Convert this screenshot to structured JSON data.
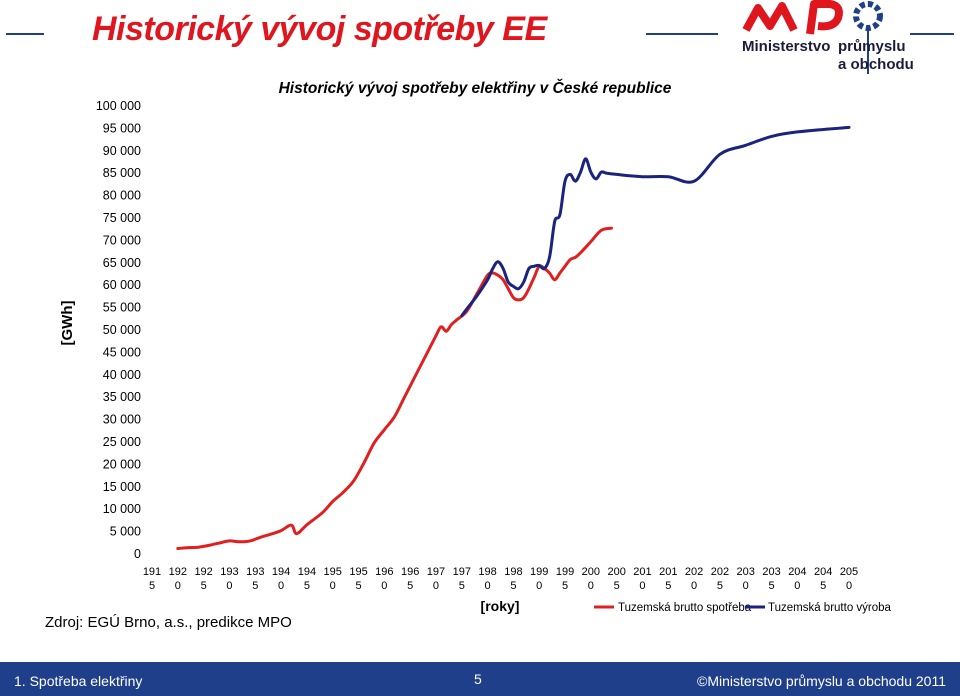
{
  "slide": {
    "title": "Historický vývoj spotřeby EE",
    "source": "Zdroj: EGÚ Brno, a.s., predikce MPO"
  },
  "logo": {
    "word1": "Ministerstvo",
    "word2": "průmyslu",
    "word3": "a obchodu"
  },
  "footer": {
    "left": "1. Spotřeba elektřiny",
    "page": "5",
    "right": "©Ministerstvo průmyslu a obchodu 2011"
  },
  "colors": {
    "accent_red": "#e0161f",
    "navy": "#1f3f8a",
    "series_red": "#e02020",
    "series_blue": "#1a237e"
  },
  "chart_data": {
    "type": "line",
    "title": "Historický vývoj spotřeby elektřiny v České republice",
    "xlabel": "[roky]",
    "ylabel": "[GWh]",
    "xlim": [
      1915,
      2050
    ],
    "ylim": [
      0,
      100000
    ],
    "yticks": [
      0,
      5000,
      10000,
      15000,
      20000,
      25000,
      30000,
      35000,
      40000,
      45000,
      50000,
      55000,
      60000,
      65000,
      70000,
      75000,
      80000,
      85000,
      90000,
      95000,
      100000
    ],
    "ytick_labels": [
      "0",
      "5 000",
      "10 000",
      "15 000",
      "20 000",
      "25 000",
      "30 000",
      "35 000",
      "40 000",
      "45 000",
      "50 000",
      "55 000",
      "60 000",
      "65 000",
      "70 000",
      "75 000",
      "80 000",
      "85 000",
      "90 000",
      "95 000",
      "100 000"
    ],
    "xticks": [
      {
        "line1": "191",
        "line2": "5"
      },
      {
        "line1": "192",
        "line2": "0"
      },
      {
        "line1": "192",
        "line2": "5"
      },
      {
        "line1": "193",
        "line2": "0"
      },
      {
        "line1": "193",
        "line2": "5"
      },
      {
        "line1": "194",
        "line2": "0"
      },
      {
        "line1": "194",
        "line2": "5"
      },
      {
        "line1": "195",
        "line2": "0"
      },
      {
        "line1": "195",
        "line2": "5"
      },
      {
        "line1": "196",
        "line2": "0"
      },
      {
        "line1": "196",
        "line2": "5"
      },
      {
        "line1": "197",
        "line2": "0"
      },
      {
        "line1": "197",
        "line2": "5"
      },
      {
        "line1": "198",
        "line2": "0"
      },
      {
        "line1": "198",
        "line2": "5"
      },
      {
        "line1": "199",
        "line2": "0"
      },
      {
        "line1": "199",
        "line2": "5"
      },
      {
        "line1": "200",
        "line2": "0"
      },
      {
        "line1": "200",
        "line2": "5"
      },
      {
        "line1": "201",
        "line2": "0"
      },
      {
        "line1": "201",
        "line2": "5"
      },
      {
        "line1": "202",
        "line2": "0"
      },
      {
        "line1": "202",
        "line2": "5"
      },
      {
        "line1": "203",
        "line2": "0"
      },
      {
        "line1": "203",
        "line2": "5"
      },
      {
        "line1": "204",
        "line2": "0"
      },
      {
        "line1": "204",
        "line2": "5"
      },
      {
        "line1": "205",
        "line2": "0"
      }
    ],
    "legend_position": "bottom-right",
    "grid": false,
    "series": [
      {
        "name": "Tuzemská brutto spotřeba",
        "color": "#e02020",
        "points": [
          [
            1920,
            1000
          ],
          [
            1922,
            1200
          ],
          [
            1924,
            1300
          ],
          [
            1926,
            1700
          ],
          [
            1928,
            2200
          ],
          [
            1930,
            2700
          ],
          [
            1932,
            2500
          ],
          [
            1934,
            2700
          ],
          [
            1936,
            3500
          ],
          [
            1938,
            4200
          ],
          [
            1940,
            5000
          ],
          [
            1942,
            6200
          ],
          [
            1943,
            4300
          ],
          [
            1945,
            6300
          ],
          [
            1948,
            9000
          ],
          [
            1950,
            11500
          ],
          [
            1952,
            13500
          ],
          [
            1954,
            16000
          ],
          [
            1956,
            20000
          ],
          [
            1958,
            24500
          ],
          [
            1960,
            27500
          ],
          [
            1962,
            30500
          ],
          [
            1964,
            35000
          ],
          [
            1966,
            39500
          ],
          [
            1968,
            44000
          ],
          [
            1970,
            48500
          ],
          [
            1971,
            50500
          ],
          [
            1972,
            49500
          ],
          [
            1973,
            51000
          ],
          [
            1974,
            52000
          ],
          [
            1976,
            54000
          ],
          [
            1978,
            58000
          ],
          [
            1980,
            62000
          ],
          [
            1981,
            62500
          ],
          [
            1982,
            62000
          ],
          [
            1983,
            61000
          ],
          [
            1984,
            59000
          ],
          [
            1985,
            57000
          ],
          [
            1986,
            56500
          ],
          [
            1987,
            57000
          ],
          [
            1988,
            59000
          ],
          [
            1989,
            61500
          ],
          [
            1990,
            64000
          ],
          [
            1991,
            63500
          ],
          [
            1992,
            62500
          ],
          [
            1993,
            61000
          ],
          [
            1994,
            62500
          ],
          [
            1995,
            64000
          ],
          [
            1996,
            65500
          ],
          [
            1997,
            66000
          ],
          [
            1998,
            67000
          ],
          [
            2000,
            69500
          ],
          [
            2002,
            72000
          ],
          [
            2004,
            72500
          ]
        ]
      },
      {
        "name": "Tuzemská brutto výroba",
        "color": "#1a237e",
        "points": [
          [
            1975,
            53000
          ],
          [
            1976,
            54500
          ],
          [
            1978,
            57500
          ],
          [
            1980,
            61000
          ],
          [
            1981,
            63500
          ],
          [
            1982,
            65000
          ],
          [
            1983,
            63500
          ],
          [
            1984,
            60500
          ],
          [
            1985,
            59500
          ],
          [
            1986,
            59000
          ],
          [
            1987,
            60500
          ],
          [
            1988,
            63500
          ],
          [
            1989,
            64000
          ],
          [
            1990,
            64200
          ],
          [
            1991,
            63500
          ],
          [
            1992,
            66000
          ],
          [
            1993,
            74000
          ],
          [
            1994,
            75500
          ],
          [
            1995,
            83000
          ],
          [
            1996,
            84500
          ],
          [
            1997,
            83000
          ],
          [
            1998,
            85000
          ],
          [
            1999,
            88000
          ],
          [
            2000,
            85000
          ],
          [
            2001,
            83500
          ],
          [
            2002,
            85000
          ],
          [
            2003,
            84800
          ],
          [
            2005,
            84500
          ],
          [
            2010,
            84000
          ],
          [
            2015,
            84000
          ],
          [
            2020,
            83000
          ],
          [
            2025,
            89000
          ],
          [
            2030,
            91000
          ],
          [
            2035,
            93000
          ],
          [
            2040,
            94000
          ],
          [
            2050,
            95000
          ]
        ]
      }
    ]
  }
}
